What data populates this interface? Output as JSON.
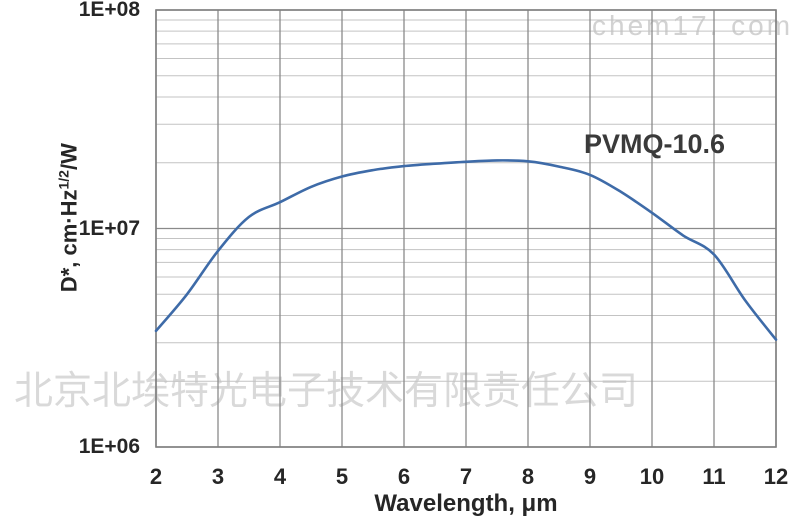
{
  "page": {
    "background": "#ffffff"
  },
  "watermarks": {
    "site": "chem17. com",
    "company": "北京北埃特光电子技术有限责任公司"
  },
  "chart_data": {
    "type": "line",
    "title": "",
    "series_label": "PVMQ-10.6",
    "xlabel": "Wavelength, μm",
    "ylabel_prefix": "D*, cm·Hz",
    "ylabel_sup": "1/2",
    "ylabel_suffix": "/W",
    "y_scale": "log",
    "xlim": [
      2,
      12
    ],
    "ylim": [
      1000000,
      100000000
    ],
    "grid": "on",
    "legend_position": "none",
    "x_ticks": [
      2,
      3,
      4,
      5,
      6,
      7,
      8,
      9,
      10,
      11,
      12
    ],
    "y_ticks": [
      {
        "label": "1E+06",
        "value": 1000000
      },
      {
        "label": "1E+07",
        "value": 10000000
      },
      {
        "label": "1E+08",
        "value": 100000000
      }
    ],
    "x": [
      2,
      2.5,
      3,
      3.5,
      4,
      4.5,
      5,
      5.5,
      6,
      6.5,
      7,
      7.5,
      8,
      8.5,
      9,
      9.5,
      10,
      10.5,
      11,
      11.5,
      12
    ],
    "values": [
      3400000.0,
      5000000.0,
      7900000.0,
      11300000.0,
      13200000.0,
      15500000.0,
      17300000.0,
      18500000.0,
      19300000.0,
      19800000.0,
      20200000.0,
      20500000.0,
      20300000.0,
      19200000.0,
      17600000.0,
      14700000.0,
      11800000.0,
      9300000.0,
      7600000.0,
      4700000.0,
      3100000.0
    ],
    "colors": {
      "line": "#3e6ba8",
      "grid_major": "#8a8a8a",
      "grid_minor": "#c3c3c3",
      "border": "#7f7f7f",
      "text": "#262626",
      "watermark": "#d6d6d6"
    }
  }
}
